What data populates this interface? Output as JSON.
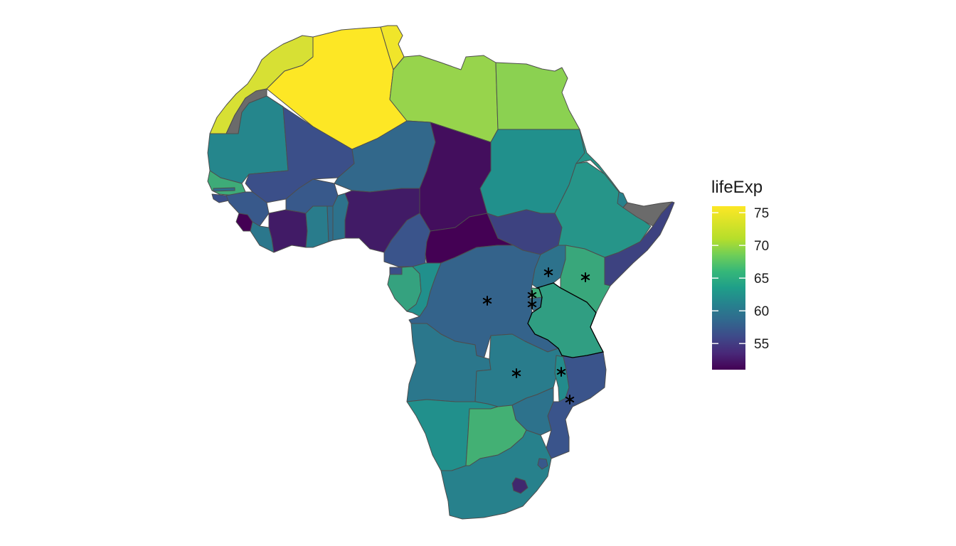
{
  "map": {
    "region": "Africa",
    "fill_variable": "lifeExp",
    "missing_color": "#6b6b6b",
    "border_color": "#4d4d4d"
  },
  "legend": {
    "title": "lifeExp",
    "type": "continuous-colorbar",
    "range": [
      51,
      76
    ],
    "breaks": [
      {
        "value": 75,
        "label": "75"
      },
      {
        "value": 70,
        "label": "70"
      },
      {
        "value": 65,
        "label": "65"
      },
      {
        "value": 60,
        "label": "60"
      },
      {
        "value": 55,
        "label": "55"
      }
    ],
    "palette": [
      "#440154",
      "#3b528b",
      "#21908c",
      "#5ec962",
      "#fde725"
    ]
  },
  "countries": [
    {
      "name": "Morocco",
      "lifeExp": 74.5
    },
    {
      "name": "Western Sahara",
      "lifeExp": null
    },
    {
      "name": "Algeria",
      "lifeExp": 76.0
    },
    {
      "name": "Tunisia",
      "lifeExp": 75.5
    },
    {
      "name": "Libya",
      "lifeExp": 72.0
    },
    {
      "name": "Egypt",
      "lifeExp": 71.5
    },
    {
      "name": "Mauritania",
      "lifeExp": 62.5
    },
    {
      "name": "Mali",
      "lifeExp": 57.0
    },
    {
      "name": "Niger",
      "lifeExp": 59.5
    },
    {
      "name": "Chad",
      "lifeExp": 52.0
    },
    {
      "name": "Sudan",
      "lifeExp": 63.5
    },
    {
      "name": "South Sudan",
      "lifeExp": 56.0
    },
    {
      "name": "Eritrea",
      "lifeExp": 64.0
    },
    {
      "name": "Ethiopia",
      "lifeExp": 64.0
    },
    {
      "name": "Somaliland",
      "lifeExp": null
    },
    {
      "name": "Somalia",
      "lifeExp": 56.0
    },
    {
      "name": "Djibouti",
      "lifeExp": 62.0
    },
    {
      "name": "Senegal",
      "lifeExp": 66.5
    },
    {
      "name": "Gambia",
      "lifeExp": 60.0
    },
    {
      "name": "Guinea-Bissau",
      "lifeExp": 57.0
    },
    {
      "name": "Guinea",
      "lifeExp": 58.0
    },
    {
      "name": "Sierra Leone",
      "lifeExp": 51.0
    },
    {
      "name": "Liberia",
      "lifeExp": 61.0
    },
    {
      "name": "Cote d'Ivoire",
      "lifeExp": 53.0
    },
    {
      "name": "Burkina Faso",
      "lifeExp": 58.0
    },
    {
      "name": "Ghana",
      "lifeExp": 61.5
    },
    {
      "name": "Togo",
      "lifeExp": 60.0
    },
    {
      "name": "Benin",
      "lifeExp": 60.5
    },
    {
      "name": "Nigeria",
      "lifeExp": 53.0
    },
    {
      "name": "Cameroon",
      "lifeExp": 57.5
    },
    {
      "name": "Central African Republic",
      "lifeExp": 51.0
    },
    {
      "name": "Equatorial Guinea",
      "lifeExp": 57.0
    },
    {
      "name": "Gabon",
      "lifeExp": 65.5
    },
    {
      "name": "Republic of the Congo",
      "lifeExp": 63.5
    },
    {
      "name": "DR Congo",
      "lifeExp": 59.0
    },
    {
      "name": "Uganda",
      "lifeExp": 60.5
    },
    {
      "name": "Kenya",
      "lifeExp": 66.0
    },
    {
      "name": "Rwanda",
      "lifeExp": 66.5
    },
    {
      "name": "Burundi",
      "lifeExp": 60.0
    },
    {
      "name": "Tanzania",
      "lifeExp": 65.0
    },
    {
      "name": "Angola",
      "lifeExp": 61.0
    },
    {
      "name": "Zambia",
      "lifeExp": 61.5
    },
    {
      "name": "Malawi",
      "lifeExp": 63.0
    },
    {
      "name": "Mozambique",
      "lifeExp": 57.5
    },
    {
      "name": "Zimbabwe",
      "lifeExp": 60.5
    },
    {
      "name": "Namibia",
      "lifeExp": 63.5
    },
    {
      "name": "Botswana",
      "lifeExp": 67.0
    },
    {
      "name": "South Africa",
      "lifeExp": 62.0
    },
    {
      "name": "Lesotho",
      "lifeExp": 54.0
    },
    {
      "name": "Eswatini",
      "lifeExp": 58.0
    }
  ],
  "highlighted_regions": [
    "Tanzania"
  ],
  "markers": [
    {
      "name": "marker-uganda"
    },
    {
      "name": "marker-kenya"
    },
    {
      "name": "marker-rwanda"
    },
    {
      "name": "marker-burundi"
    },
    {
      "name": "marker-drc"
    },
    {
      "name": "marker-zambia"
    },
    {
      "name": "marker-malawi"
    },
    {
      "name": "marker-mozambique"
    }
  ]
}
